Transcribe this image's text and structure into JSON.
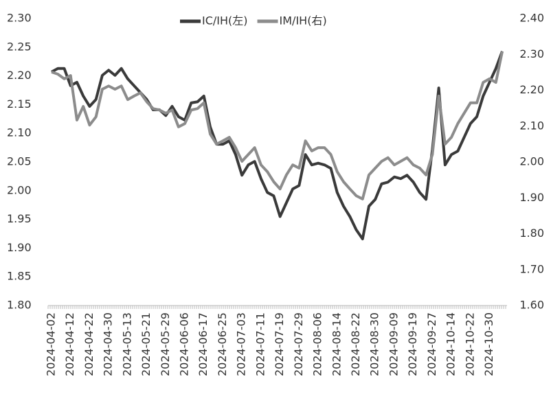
{
  "chart_data": {
    "type": "line",
    "categories": [
      "2024-04-02",
      null,
      null,
      "2024-04-12",
      null,
      null,
      "2024-04-22",
      null,
      null,
      "2024-04-30",
      null,
      null,
      "2024-05-13",
      null,
      null,
      "2024-05-21",
      null,
      null,
      "2024-05-29",
      null,
      null,
      "2024-06-06",
      null,
      null,
      "2024-06-17",
      null,
      null,
      "2024-06-25",
      null,
      null,
      "2024-07-03",
      null,
      null,
      "2024-07-11",
      null,
      null,
      "2024-07-19",
      null,
      null,
      "2024-07-29",
      null,
      null,
      "2024-08-06",
      null,
      null,
      "2024-08-14",
      null,
      null,
      "2024-08-22",
      null,
      null,
      "2024-08-30",
      null,
      null,
      "2024-09-09",
      null,
      null,
      "2024-09-19",
      null,
      null,
      "2024-09-27",
      null,
      null,
      "2024-10-14",
      null,
      null,
      "2024-10-22",
      null,
      null,
      "2024-10-30",
      null,
      null
    ],
    "series": [
      {
        "name": "IC/IH(左)",
        "color": "#3a3a3a",
        "axis": "y",
        "values": [
          2.207,
          2.213,
          2.213,
          2.183,
          2.189,
          2.165,
          2.147,
          2.159,
          2.201,
          2.21,
          2.201,
          2.213,
          2.195,
          2.183,
          2.171,
          2.159,
          2.141,
          2.141,
          2.131,
          2.147,
          2.129,
          2.123,
          2.153,
          2.155,
          2.165,
          2.111,
          2.081,
          2.081,
          2.087,
          2.063,
          2.027,
          2.045,
          2.051,
          2.021,
          1.997,
          1.991,
          1.955,
          1.979,
          2.003,
          2.009,
          2.063,
          2.045,
          2.048,
          2.045,
          2.039,
          1.997,
          1.973,
          1.955,
          1.932,
          1.916,
          1.973,
          1.985,
          2.012,
          2.015,
          2.024,
          2.021,
          2.027,
          2.015,
          1.997,
          1.985,
          2.072,
          2.179,
          2.045,
          2.063,
          2.069,
          2.093,
          2.117,
          2.129,
          2.165,
          2.189,
          2.213,
          2.243
        ]
      },
      {
        "name": "IM/IH(右)",
        "color": "#8c8c8c",
        "axis": "y2",
        "values": [
          2.251,
          2.245,
          2.232,
          2.241,
          2.117,
          2.155,
          2.103,
          2.126,
          2.203,
          2.212,
          2.203,
          2.212,
          2.174,
          2.184,
          2.193,
          2.168,
          2.149,
          2.145,
          2.136,
          2.145,
          2.098,
          2.107,
          2.145,
          2.149,
          2.165,
          2.078,
          2.05,
          2.059,
          2.069,
          2.04,
          2.002,
          2.021,
          2.04,
          1.992,
          1.973,
          1.945,
          1.925,
          1.964,
          1.992,
          1.983,
          2.059,
          2.031,
          2.04,
          2.04,
          2.021,
          1.973,
          1.945,
          1.925,
          1.906,
          1.897,
          1.964,
          1.983,
          2.002,
          2.012,
          1.992,
          2.002,
          2.012,
          1.992,
          1.983,
          1.964,
          2.021,
          2.184,
          2.05,
          2.069,
          2.107,
          2.136,
          2.165,
          2.165,
          2.222,
          2.232,
          2.222,
          2.308
        ]
      }
    ],
    "ylim": [
      1.8,
      2.3
    ],
    "yticks": [
      {
        "value": 1.8,
        "label": "1.80"
      },
      1.85,
      {
        "value": 1.9,
        "label": "1.90"
      },
      1.95,
      {
        "value": 2.0,
        "label": "2.00"
      },
      2.05,
      {
        "value": 2.1,
        "label": "2.10"
      },
      2.15,
      {
        "value": 2.2,
        "label": "2.20"
      },
      2.25,
      {
        "value": 2.3,
        "label": "2.30"
      }
    ],
    "y2lim": [
      1.6,
      2.4
    ],
    "y2ticks": [
      {
        "value": 1.6,
        "label": "1.60"
      },
      {
        "value": 1.7,
        "label": "1.70"
      },
      {
        "value": 1.8,
        "label": "1.80"
      },
      {
        "value": 1.9,
        "label": "1.90"
      },
      {
        "value": 2.0,
        "label": "2.00"
      },
      {
        "value": 2.1,
        "label": "2.10"
      },
      {
        "value": 2.2,
        "label": "2.20"
      },
      {
        "value": 2.3,
        "label": "2.30"
      },
      {
        "value": 2.4,
        "label": "2.40"
      }
    ],
    "legend": "top",
    "grid": false
  }
}
